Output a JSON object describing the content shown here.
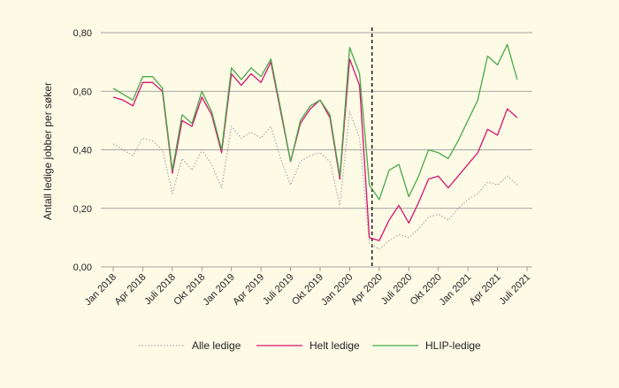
{
  "chart_data": {
    "type": "line",
    "ylabel": "Antall ledige jobber per søker",
    "ylim": [
      0,
      0.8
    ],
    "yticks": [
      0,
      0.2,
      0.4,
      0.6,
      0.8
    ],
    "ytick_labels": [
      "0,00",
      "0,20",
      "0,40",
      "0,60",
      "0,80"
    ],
    "grid": true,
    "legend_position": "bottom",
    "x_month_labels": [
      "Jan 2018",
      "Feb 2018",
      "Mar 2018",
      "Apr 2018",
      "Mai 2018",
      "Jun 2018",
      "Juli 2018",
      "Aug 2018",
      "Sep 2018",
      "Okt 2018",
      "Nov 2018",
      "Des 2018",
      "Jan 2019",
      "Feb 2019",
      "Mar 2019",
      "Apr 2019",
      "Mai 2019",
      "Jun 2019",
      "Juli 2019",
      "Aug 2019",
      "Sep 2019",
      "Okt 2019",
      "Nov 2019",
      "Des 2019",
      "Jan 2020",
      "Feb 2020",
      "Mar 2020",
      "Apr 2020",
      "Mai 2020",
      "Jun 2020",
      "Juli 2020",
      "Aug 2020",
      "Sep 2020",
      "Okt 2020",
      "Nov 2020",
      "Des 2020",
      "Jan 2021",
      "Feb 2021",
      "Mar 2021",
      "Apr 2021",
      "Mai 2021",
      "Jun 2021",
      "Juli 2021"
    ],
    "x_tick_labels": [
      "Jan 2018",
      "Apr 2018",
      "Juli 2018",
      "Okt 2018",
      "Jan 2019",
      "Apr 2019",
      "Juli 2019",
      "Okt 2019",
      "Jan 2020",
      "Apr 2020",
      "Juli 2020",
      "Okt 2020",
      "Jan 2021",
      "Apr 2021",
      "Juli 2021"
    ],
    "vertical_marker": "Mar 2020",
    "series": [
      {
        "name": "Alle ledige",
        "color": "#a8a8a8",
        "style": "dotted",
        "x": [
          "Jan 2018",
          "Feb 2018",
          "Mar 2018",
          "Apr 2018",
          "Mai 2018",
          "Jun 2018",
          "Juli 2018",
          "Aug 2018",
          "Sep 2018",
          "Okt 2018",
          "Nov 2018",
          "Des 2018",
          "Jan 2019",
          "Feb 2019",
          "Mar 2019",
          "Apr 2019",
          "Mai 2019",
          "Jun 2019",
          "Juli 2019",
          "Aug 2019",
          "Sep 2019",
          "Okt 2019",
          "Nov 2019",
          "Des 2019",
          "Jan 2020",
          "Feb 2020",
          "Mar 2020",
          "Apr 2020",
          "Mai 2020",
          "Jun 2020",
          "Juli 2020",
          "Aug 2020",
          "Sep 2020",
          "Okt 2020",
          "Nov 2020",
          "Des 2020",
          "Jan 2021",
          "Feb 2021",
          "Mar 2021",
          "Apr 2021",
          "Mai 2021",
          "Jun 2021"
        ],
        "values": [
          0.42,
          0.4,
          0.38,
          0.44,
          0.43,
          0.4,
          0.25,
          0.37,
          0.33,
          0.4,
          0.35,
          0.27,
          0.48,
          0.44,
          0.46,
          0.44,
          0.48,
          0.37,
          0.28,
          0.36,
          0.38,
          0.39,
          0.36,
          0.21,
          0.53,
          0.44,
          0.08,
          0.06,
          0.09,
          0.11,
          0.1,
          0.13,
          0.17,
          0.18,
          0.16,
          0.2,
          0.23,
          0.25,
          0.29,
          0.28,
          0.31,
          0.28
        ]
      },
      {
        "name": "Helt ledige",
        "color": "#d6136f",
        "style": "solid",
        "x": [
          "Jan 2018",
          "Feb 2018",
          "Mar 2018",
          "Apr 2018",
          "Mai 2018",
          "Jun 2018",
          "Juli 2018",
          "Aug 2018",
          "Sep 2018",
          "Okt 2018",
          "Nov 2018",
          "Des 2018",
          "Jan 2019",
          "Feb 2019",
          "Mar 2019",
          "Apr 2019",
          "Mai 2019",
          "Jun 2019",
          "Juli 2019",
          "Aug 2019",
          "Sep 2019",
          "Okt 2019",
          "Nov 2019",
          "Des 2019",
          "Jan 2020",
          "Feb 2020",
          "Mar 2020",
          "Apr 2020",
          "Mai 2020",
          "Jun 2020",
          "Juli 2020",
          "Aug 2020",
          "Sep 2020",
          "Okt 2020",
          "Nov 2020",
          "Des 2020",
          "Jan 2021",
          "Feb 2021",
          "Mar 2021",
          "Apr 2021",
          "Mai 2021",
          "Jun 2021"
        ],
        "values": [
          0.58,
          0.57,
          0.55,
          0.63,
          0.63,
          0.6,
          0.32,
          0.5,
          0.48,
          0.58,
          0.52,
          0.39,
          0.66,
          0.62,
          0.66,
          0.63,
          0.7,
          0.53,
          0.36,
          0.49,
          0.54,
          0.57,
          0.51,
          0.3,
          0.71,
          0.62,
          0.1,
          0.09,
          0.16,
          0.21,
          0.15,
          0.22,
          0.3,
          0.31,
          0.27,
          0.31,
          0.35,
          0.39,
          0.47,
          0.45,
          0.54,
          0.51
        ]
      },
      {
        "name": "HLIP-ledige",
        "color": "#4aa84a",
        "style": "solid",
        "x": [
          "Jan 2018",
          "Feb 2018",
          "Mar 2018",
          "Apr 2018",
          "Mai 2018",
          "Jun 2018",
          "Juli 2018",
          "Aug 2018",
          "Sep 2018",
          "Okt 2018",
          "Nov 2018",
          "Des 2018",
          "Jan 2019",
          "Feb 2019",
          "Mar 2019",
          "Apr 2019",
          "Mai 2019",
          "Jun 2019",
          "Juli 2019",
          "Aug 2019",
          "Sep 2019",
          "Okt 2019",
          "Nov 2019",
          "Des 2019",
          "Jan 2020",
          "Feb 2020",
          "Mar 2020",
          "Apr 2020",
          "Mai 2020",
          "Jun 2020",
          "Juli 2020",
          "Aug 2020",
          "Sep 2020",
          "Okt 2020",
          "Nov 2020",
          "Des 2020",
          "Jan 2021",
          "Feb 2021",
          "Mar 2021",
          "Apr 2021",
          "Mai 2021",
          "Jun 2021"
        ],
        "values": [
          0.61,
          0.59,
          0.57,
          0.65,
          0.65,
          0.61,
          0.33,
          0.52,
          0.49,
          0.6,
          0.53,
          0.4,
          0.68,
          0.64,
          0.68,
          0.65,
          0.71,
          0.54,
          0.36,
          0.5,
          0.55,
          0.57,
          0.52,
          0.31,
          0.75,
          0.66,
          0.28,
          0.23,
          0.33,
          0.35,
          0.24,
          0.31,
          0.4,
          0.39,
          0.37,
          0.43,
          0.5,
          0.57,
          0.72,
          0.69,
          0.76,
          0.64
        ]
      }
    ]
  }
}
